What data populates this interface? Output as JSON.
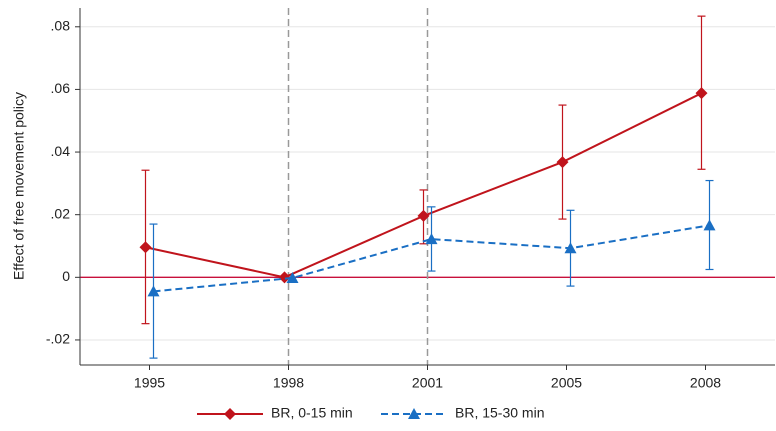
{
  "chart_data": {
    "type": "line",
    "ylabel": "Effect of free movement policy",
    "categories": [
      "1995",
      "1998",
      "2001",
      "2005",
      "2008"
    ],
    "series": [
      {
        "name": "BR, 0-15 min",
        "color": "#c0141c",
        "marker": "diamond",
        "dashed": false,
        "values": [
          0.0096,
          0.0,
          0.0196,
          0.0368,
          0.0588
        ],
        "lower": [
          -0.0148,
          null,
          0.0107,
          0.0186,
          0.0345
        ],
        "upper": [
          0.0342,
          null,
          0.0279,
          0.055,
          0.0834
        ]
      },
      {
        "name": "BR, 15-30 min",
        "color": "#1a6fc4",
        "marker": "triangle",
        "dashed": true,
        "values": [
          -0.0045,
          -0.0002,
          0.0122,
          0.0093,
          0.0166
        ],
        "lower": [
          -0.0258,
          null,
          0.002,
          -0.0028,
          0.0025
        ],
        "upper": [
          0.017,
          null,
          0.0225,
          0.0214,
          0.0309
        ]
      }
    ],
    "ylim": [
      -0.028,
      0.086
    ],
    "yticks": [
      {
        "value": -0.02,
        "label": "-.02"
      },
      0,
      {
        "value": 0.02,
        "label": ".02"
      },
      {
        "value": 0.04,
        "label": ".04"
      },
      {
        "value": 0.06,
        "label": ".06"
      },
      {
        "value": 0.08,
        "label": ".08"
      }
    ],
    "grid": true,
    "legend": "bottom"
  }
}
